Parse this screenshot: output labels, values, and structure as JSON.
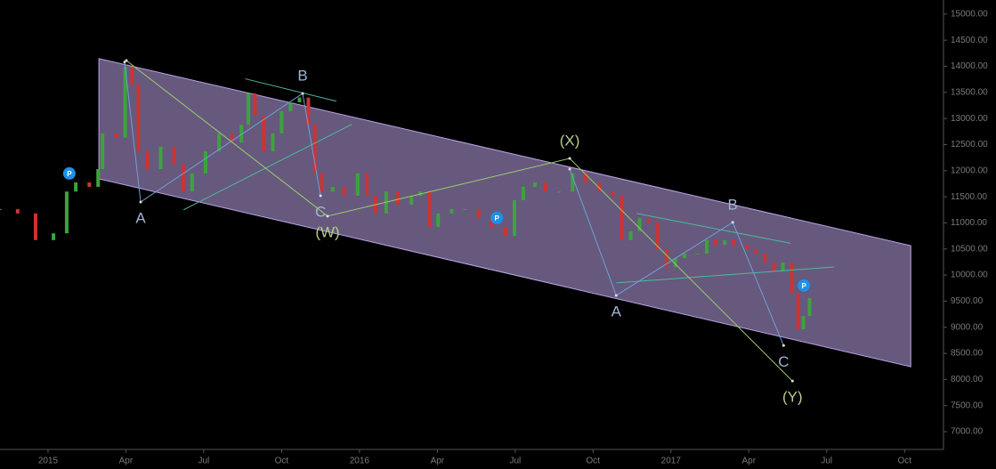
{
  "chart_data": {
    "type": "candlestick",
    "xlim": [
      -1.85,
      34.5
    ],
    "xticks": [
      {
        "value": 0,
        "label": "2015"
      },
      {
        "value": 3,
        "label": "Apr"
      },
      {
        "value": 6,
        "label": "Jul"
      },
      {
        "value": 9,
        "label": "Oct"
      },
      {
        "value": 12,
        "label": "2016"
      },
      {
        "value": 15,
        "label": "Apr"
      },
      {
        "value": 18,
        "label": "Jul"
      },
      {
        "value": 21,
        "label": "Oct"
      },
      {
        "value": 24,
        "label": "2017"
      },
      {
        "value": 27,
        "label": "Apr"
      },
      {
        "value": 30,
        "label": "Jul"
      },
      {
        "value": 33,
        "label": "Oct"
      }
    ],
    "ylim": [
      6660,
      15270
    ],
    "yticks": [
      {
        "value": 7000,
        "label": "7000.00"
      },
      {
        "value": 7500,
        "label": "7500.00"
      },
      {
        "value": 8000,
        "label": "8000.00"
      },
      {
        "value": 8500,
        "label": "8500.00"
      },
      {
        "value": 9000,
        "label": "9000.00"
      },
      {
        "value": 9500,
        "label": "9500.00"
      },
      {
        "value": 10000,
        "label": "10000.00"
      },
      {
        "value": 10500,
        "label": "10500.00"
      },
      {
        "value": 11000,
        "label": "11000.00"
      },
      {
        "value": 11500,
        "label": "11500.00"
      },
      {
        "value": 12000,
        "label": "12000.00"
      },
      {
        "value": 12500,
        "label": "12500.00"
      },
      {
        "value": 13000,
        "label": "13000.00"
      },
      {
        "value": 13500,
        "label": "13500.00"
      },
      {
        "value": 14000,
        "label": "14000.00"
      },
      {
        "value": 14500,
        "label": "14500.00"
      },
      {
        "value": 15000,
        "label": "15000.00"
      }
    ],
    "up_color": "#3da33d",
    "down_color": "#cc3333",
    "series": [
      {
        "x": [
          -1.86,
          -1.17,
          -0.48,
          0.21,
          0.72,
          1.07,
          1.59,
          1.93,
          2.1,
          2.62,
          2.97,
          3.24,
          3.48,
          3.83,
          4.34,
          4.86,
          5.21,
          5.55,
          6.07,
          6.59,
          7.1,
          7.45,
          7.72,
          7.97,
          8.31,
          8.66,
          9.0,
          9.34,
          9.69,
          10.03,
          10.28,
          10.55,
          10.97,
          11.41,
          11.93,
          12.28,
          12.62,
          13.03,
          13.48,
          14.0,
          14.34,
          14.69,
          15.03,
          15.55,
          16.07,
          16.59,
          17.1,
          17.62,
          17.97,
          18.31,
          18.76,
          19.17,
          19.69,
          20.21,
          20.72,
          21.24,
          21.76,
          22.1,
          22.45,
          22.79,
          23.14,
          23.48,
          23.83,
          24.17,
          24.52,
          25.03,
          25.38,
          25.72,
          26.07,
          26.41,
          26.93,
          27.28,
          27.62,
          27.97,
          28.31,
          28.66,
          28.9,
          29.1,
          29.34
        ],
        "values": [
          11265,
          11180,
          10670,
          10800,
          11600,
          11775,
          11690,
          12030,
          12715,
          12630,
          13990,
          13650,
          12370,
          12030,
          12460,
          12120,
          11600,
          11950,
          12370,
          12715,
          12540,
          12880,
          13480,
          13055,
          12370,
          12715,
          13140,
          13310,
          13400,
          12880,
          11950,
          11600,
          11690,
          11520,
          11950,
          11520,
          11180,
          11600,
          11350,
          11520,
          11600,
          10920,
          11180,
          11265,
          11265,
          11090,
          10920,
          10750,
          11435,
          11690,
          11775,
          11600,
          11600,
          11950,
          11775,
          11600,
          11520,
          10670,
          10840,
          11090,
          11010,
          10500,
          10155,
          10325,
          10410,
          10410,
          10670,
          10580,
          10670,
          10580,
          10500,
          10410,
          10240,
          10070,
          10240,
          9640,
          8960,
          9215,
          9560
        ]
      }
    ],
    "channel": {
      "color": "#b9a3e3",
      "upper": {
        "x": [
          1.96,
          33.24
        ],
        "y": [
          14147,
          10564
        ]
      },
      "lower": {
        "x": [
          1.96,
          33.24
        ],
        "y": [
          11844,
          8244
        ]
      }
    },
    "trendlines": [
      {
        "color": "#4fb89c",
        "x": [
          7.6,
          11.11
        ],
        "y": [
          13760,
          13330
        ]
      },
      {
        "color": "#4fb89c",
        "x": [
          5.22,
          11.71
        ],
        "y": [
          11250,
          12890
        ]
      },
      {
        "color": "#4fb89c",
        "x": [
          22.68,
          28.61
        ],
        "y": [
          11180,
          10610
        ]
      },
      {
        "color": "#4fb89c",
        "x": [
          21.89,
          30.29
        ],
        "y": [
          9850,
          10155
        ]
      }
    ],
    "waves": [
      {
        "color": "#6e9fd8",
        "label_color": "#9fb4d4",
        "x": [
          2.95,
          3.57,
          9.81,
          10.5
        ],
        "y": [
          14080,
          11400,
          13480,
          11520
        ],
        "labels": [
          null,
          "A",
          "B",
          "C"
        ],
        "label_side": [
          0,
          1,
          -1,
          1
        ]
      },
      {
        "color": "#9ccc6c",
        "label_color": "#b5cc8e",
        "x": [
          3.02,
          10.77,
          20.1,
          28.68
        ],
        "y": [
          14110,
          11130,
          12235,
          7970
        ],
        "labels": [
          null,
          "(W)",
          "(X)",
          "(Y)"
        ],
        "label_side": [
          0,
          1,
          -1,
          1
        ]
      },
      {
        "color": "#6e9fd8",
        "label_color": "#9fb4d4",
        "x": [
          20.1,
          21.89,
          26.38,
          28.34
        ],
        "y": [
          12030,
          9610,
          11010,
          8650
        ],
        "labels": [
          null,
          "A",
          "B",
          "C"
        ],
        "label_side": [
          0,
          1,
          -1,
          1
        ]
      }
    ],
    "markers": {
      "label": "P",
      "color": "#1e90e6",
      "x": [
        0.82,
        17.29,
        29.12
      ],
      "y": [
        11947,
        11094,
        9800
      ]
    }
  }
}
